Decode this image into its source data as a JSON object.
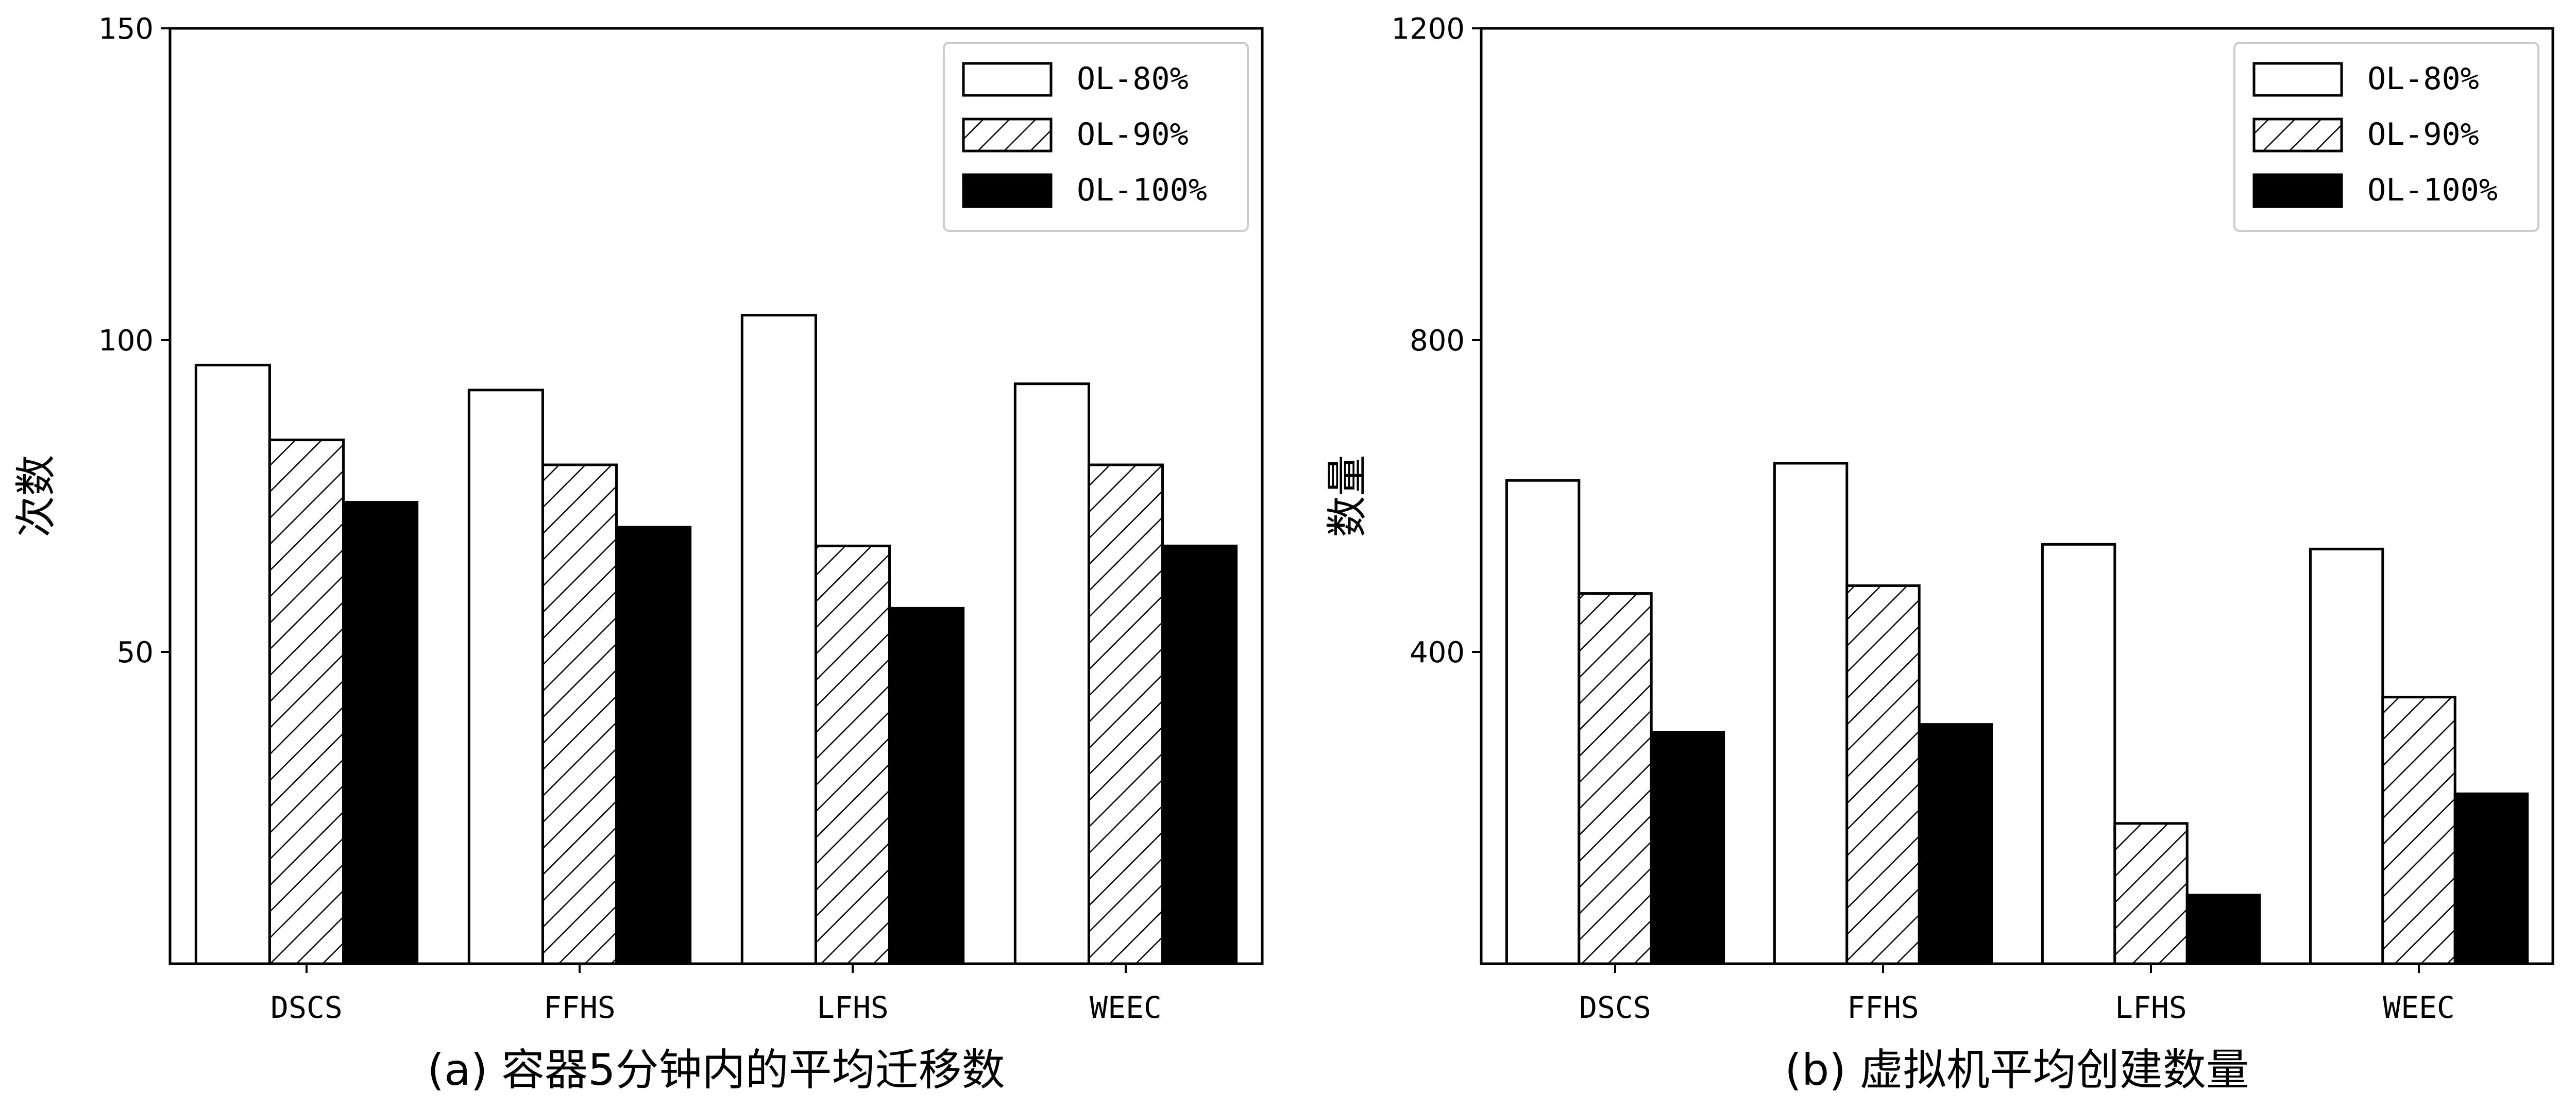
{
  "chart_data": [
    {
      "type": "bar",
      "caption": "(a) 容器5分钟内的平均迁移数",
      "xlabel": "",
      "ylabel": "次数",
      "categories": [
        "DSCS",
        "FFHS",
        "LFHS",
        "WEEC"
      ],
      "ylim": [
        0,
        150
      ],
      "yticks": [
        50,
        100,
        150
      ],
      "legend_position": "top-right",
      "series": [
        {
          "name": "OL-80%",
          "pattern": "white",
          "values": [
            96,
            92,
            104,
            93
          ]
        },
        {
          "name": "OL-90%",
          "pattern": "hatch",
          "values": [
            84,
            80,
            67,
            80
          ]
        },
        {
          "name": "OL-100%",
          "pattern": "black",
          "values": [
            74,
            70,
            57,
            67
          ]
        }
      ]
    },
    {
      "type": "bar",
      "caption": "(b) 虚拟机平均创建数量",
      "xlabel": "",
      "ylabel": "数量",
      "categories": [
        "DSCS",
        "FFHS",
        "LFHS",
        "WEEC"
      ],
      "ylim": [
        0,
        1200
      ],
      "yticks": [
        400,
        800,
        1200
      ],
      "legend_position": "top-right",
      "series": [
        {
          "name": "OL-80%",
          "pattern": "white",
          "values": [
            620,
            642,
            538,
            532
          ]
        },
        {
          "name": "OL-90%",
          "pattern": "hatch",
          "values": [
            475,
            485,
            180,
            342
          ]
        },
        {
          "name": "OL-100%",
          "pattern": "black",
          "values": [
            297,
            307,
            88,
            218
          ]
        }
      ]
    }
  ]
}
